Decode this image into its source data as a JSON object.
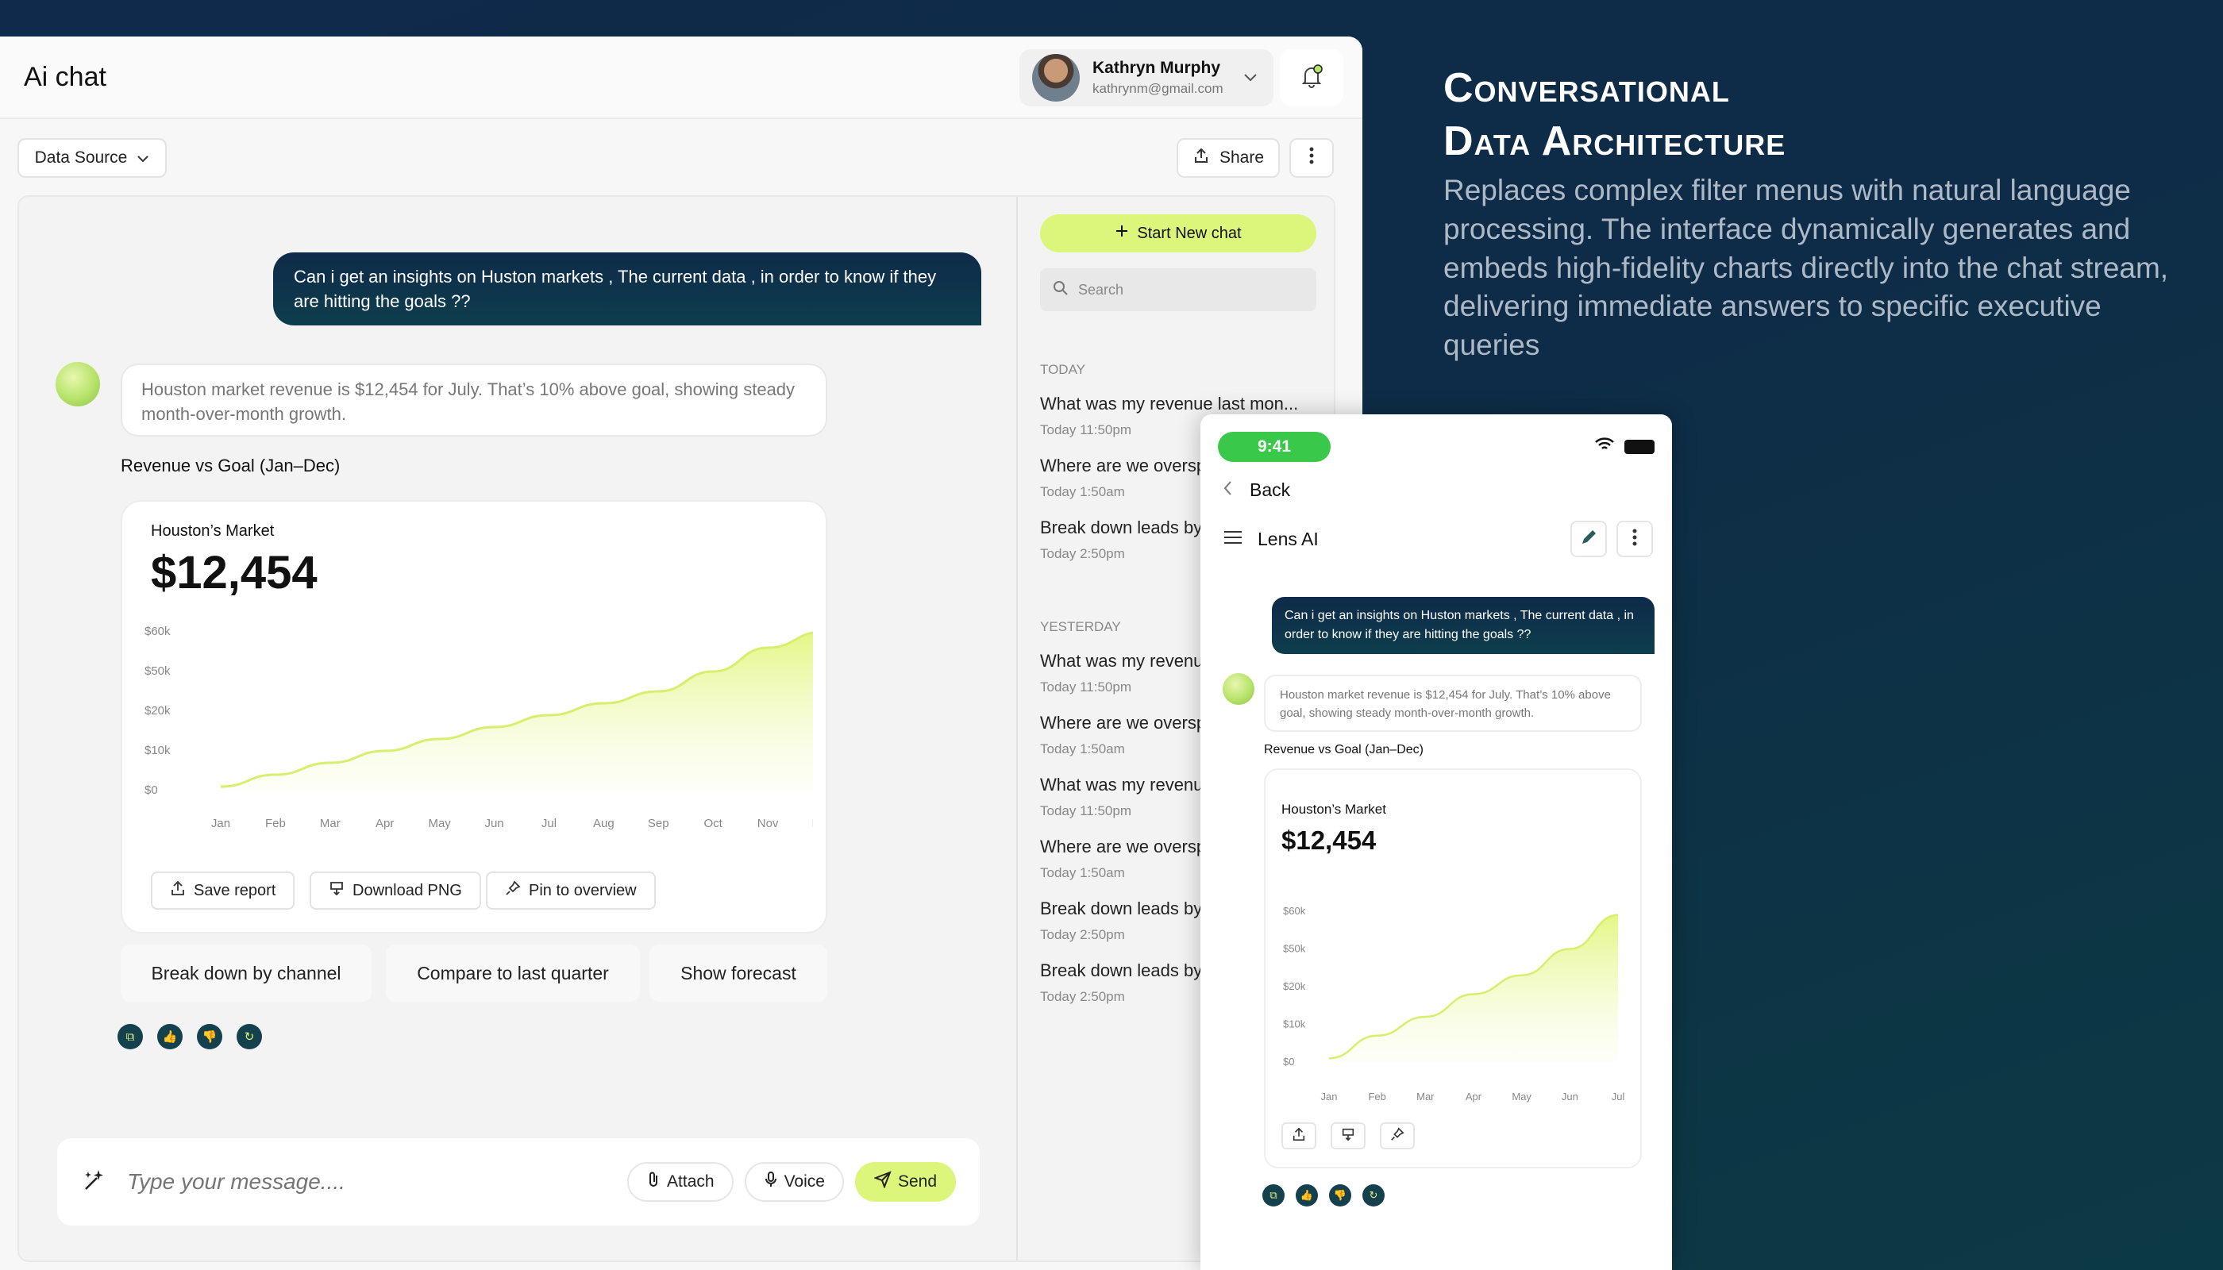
{
  "app": {
    "title": "Ai chat"
  },
  "user": {
    "name": "Kathryn Murphy",
    "email": "kathrynm@gmail.com"
  },
  "toolbar": {
    "data_source": "Data Source",
    "share": "Share"
  },
  "chat": {
    "user_message": "Can i get an insights on Huston markets , The current data , in order to know if they are hitting the goals ??",
    "bot_message": "Houston market revenue is $12,454 for July. That’s 10% above goal, showing steady month-over-month growth.",
    "chart_caption": "Revenue vs Goal (Jan–Dec)",
    "card_subtitle": "Houston’s Market",
    "card_value": "$12,454",
    "actions": {
      "save": "Save report",
      "download": "Download PNG",
      "pin": "Pin to overview"
    },
    "suggestions": [
      "Break down by channel",
      "Compare to last quarter",
      "Show forecast"
    ]
  },
  "composer": {
    "placeholder": "Type your message....",
    "attach": "Attach",
    "voice": "Voice",
    "send": "Send"
  },
  "sidebar": {
    "new_chat": "Start New chat",
    "search_placeholder": "Search",
    "today_label": "TODAY",
    "yesterday_label": "YESTERDAY",
    "today": [
      {
        "title": "What was my revenue last mon...",
        "time": "Today 11:50pm"
      },
      {
        "title": "Where are we overspending",
        "time": "Today 1:50am"
      },
      {
        "title": "Break down leads by channel",
        "time": "Today 2:50pm"
      }
    ],
    "yesterday": [
      {
        "title": "What was my revenue last month",
        "time": "Today 11:50pm"
      },
      {
        "title": "Where are we overspending",
        "time": "Today 1:50am"
      },
      {
        "title": "What was my revenue last month",
        "time": "Today 11:50pm"
      },
      {
        "title": "Where are we overspending",
        "time": "Today 1:50am"
      },
      {
        "title": "Break down leads by channel",
        "time": "Today 2:50pm"
      },
      {
        "title": "Break down leads by channel",
        "time": "Today 2:50pm"
      }
    ]
  },
  "hero": {
    "title_line1": "Conversational",
    "title_line2": "Data Architecture",
    "description": "Replaces complex filter menus with natural language processing. The interface dynamically generates and embeds high-fidelity charts directly into the chat stream, delivering immediate answers to specific executive queries"
  },
  "phone": {
    "time": "9:41",
    "back": "Back",
    "app_name": "Lens AI",
    "user_message": "Can i get an insights on Huston markets , The current data , in order to know if they are hitting the goals ??",
    "bot_message": "Houston market revenue is $12,454 for July. That’s 10% above goal, showing steady month-over-month growth.",
    "chart_caption": "Revenue vs Goal (Jan–Dec)",
    "card_subtitle": "Houston’s Market",
    "card_value": "$12,454"
  },
  "colors": {
    "accent": "#dcf57b",
    "dark_navy": "#0f2a4a",
    "chart_line": "#d6ef6c"
  },
  "chart_data": [
    {
      "type": "area",
      "x": [
        "Jan",
        "Feb",
        "Mar",
        "Apr",
        "May",
        "Jun",
        "Jul",
        "Aug",
        "Sep",
        "Oct",
        "Nov",
        "Dec"
      ],
      "y_ticks": [
        "$0",
        "$10k",
        "$20k",
        "$50k",
        "$60k"
      ],
      "y_tick_values": [
        0,
        1,
        2,
        3,
        4
      ],
      "values": [
        0.1,
        0.4,
        0.7,
        1.0,
        1.3,
        1.6,
        1.9,
        2.2,
        2.5,
        3.0,
        3.6,
        4.0
      ],
      "ylim": [
        0,
        4
      ],
      "grid": false
    },
    {
      "type": "area",
      "x": [
        "Jan",
        "Feb",
        "Mar",
        "Apr",
        "May",
        "Jun",
        "Jul"
      ],
      "y_ticks": [
        "$0",
        "$10k",
        "$20k",
        "$50k",
        "$60k"
      ],
      "y_tick_values": [
        0,
        1,
        2,
        3,
        4
      ],
      "values": [
        0.1,
        0.7,
        1.2,
        1.8,
        2.3,
        3.0,
        3.9
      ],
      "ylim": [
        0,
        4
      ],
      "grid": false
    }
  ]
}
